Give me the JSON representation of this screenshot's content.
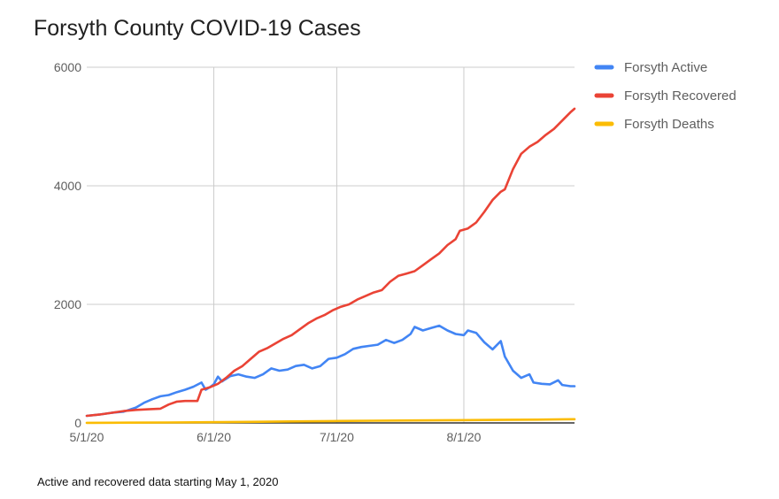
{
  "chart_data": {
    "type": "line",
    "title": "Forsyth County COVID-19 Cases",
    "xlabel": "",
    "ylabel": "",
    "ylim": [
      0,
      6000
    ],
    "yticks": [
      0,
      2000,
      4000,
      6000
    ],
    "xlim_days": [
      0,
      119
    ],
    "xticks": [
      {
        "label": "5/1/20",
        "day": 0
      },
      {
        "label": "6/1/20",
        "day": 31
      },
      {
        "label": "7/1/20",
        "day": 61
      },
      {
        "label": "8/1/20",
        "day": 92
      }
    ],
    "grid": true,
    "legend_position": "right",
    "series": [
      {
        "name": "Forsyth Active",
        "color": "#4285f4",
        "points": [
          [
            0,
            120
          ],
          [
            3,
            140
          ],
          [
            6,
            170
          ],
          [
            9,
            190
          ],
          [
            12,
            260
          ],
          [
            14,
            340
          ],
          [
            16,
            400
          ],
          [
            18,
            450
          ],
          [
            20,
            470
          ],
          [
            22,
            520
          ],
          [
            24,
            560
          ],
          [
            26,
            610
          ],
          [
            28,
            680
          ],
          [
            29,
            560
          ],
          [
            30,
            600
          ],
          [
            31,
            650
          ],
          [
            32,
            780
          ],
          [
            33,
            700
          ],
          [
            35,
            790
          ],
          [
            37,
            820
          ],
          [
            39,
            780
          ],
          [
            41,
            760
          ],
          [
            43,
            820
          ],
          [
            45,
            920
          ],
          [
            47,
            880
          ],
          [
            49,
            900
          ],
          [
            51,
            960
          ],
          [
            53,
            980
          ],
          [
            55,
            920
          ],
          [
            57,
            960
          ],
          [
            59,
            1080
          ],
          [
            61,
            1100
          ],
          [
            63,
            1160
          ],
          [
            65,
            1250
          ],
          [
            67,
            1280
          ],
          [
            69,
            1300
          ],
          [
            71,
            1320
          ],
          [
            73,
            1400
          ],
          [
            75,
            1350
          ],
          [
            77,
            1400
          ],
          [
            79,
            1500
          ],
          [
            80,
            1620
          ],
          [
            82,
            1560
          ],
          [
            84,
            1600
          ],
          [
            86,
            1640
          ],
          [
            88,
            1560
          ],
          [
            90,
            1500
          ],
          [
            92,
            1480
          ],
          [
            93,
            1560
          ],
          [
            95,
            1520
          ],
          [
            97,
            1360
          ],
          [
            99,
            1240
          ],
          [
            101,
            1380
          ],
          [
            102,
            1120
          ],
          [
            104,
            880
          ],
          [
            106,
            760
          ],
          [
            108,
            820
          ],
          [
            109,
            680
          ],
          [
            111,
            660
          ],
          [
            113,
            650
          ],
          [
            115,
            720
          ],
          [
            116,
            640
          ],
          [
            118,
            620
          ],
          [
            119,
            620
          ]
        ]
      },
      {
        "name": "Forsyth Recovered",
        "color": "#ea4335",
        "points": [
          [
            0,
            120
          ],
          [
            3,
            140
          ],
          [
            6,
            170
          ],
          [
            9,
            200
          ],
          [
            12,
            220
          ],
          [
            15,
            230
          ],
          [
            18,
            240
          ],
          [
            20,
            310
          ],
          [
            22,
            360
          ],
          [
            24,
            370
          ],
          [
            27,
            370
          ],
          [
            28,
            560
          ],
          [
            30,
            600
          ],
          [
            32,
            660
          ],
          [
            34,
            760
          ],
          [
            36,
            880
          ],
          [
            38,
            960
          ],
          [
            40,
            1080
          ],
          [
            42,
            1200
          ],
          [
            44,
            1260
          ],
          [
            46,
            1340
          ],
          [
            48,
            1420
          ],
          [
            50,
            1480
          ],
          [
            52,
            1580
          ],
          [
            54,
            1680
          ],
          [
            56,
            1760
          ],
          [
            58,
            1820
          ],
          [
            60,
            1900
          ],
          [
            62,
            1960
          ],
          [
            64,
            2000
          ],
          [
            66,
            2080
          ],
          [
            68,
            2140
          ],
          [
            70,
            2200
          ],
          [
            72,
            2240
          ],
          [
            74,
            2380
          ],
          [
            76,
            2480
          ],
          [
            78,
            2520
          ],
          [
            80,
            2560
          ],
          [
            82,
            2660
          ],
          [
            84,
            2760
          ],
          [
            86,
            2860
          ],
          [
            88,
            3000
          ],
          [
            90,
            3100
          ],
          [
            91,
            3240
          ],
          [
            93,
            3280
          ],
          [
            95,
            3380
          ],
          [
            97,
            3560
          ],
          [
            99,
            3760
          ],
          [
            101,
            3900
          ],
          [
            102,
            3940
          ],
          [
            104,
            4280
          ],
          [
            106,
            4540
          ],
          [
            108,
            4660
          ],
          [
            110,
            4740
          ],
          [
            112,
            4860
          ],
          [
            114,
            4960
          ],
          [
            116,
            5100
          ],
          [
            118,
            5240
          ],
          [
            119,
            5300
          ]
        ]
      },
      {
        "name": "Forsyth Deaths",
        "color": "#fbbc04",
        "points": [
          [
            0,
            2
          ],
          [
            10,
            5
          ],
          [
            20,
            8
          ],
          [
            30,
            12
          ],
          [
            40,
            18
          ],
          [
            50,
            25
          ],
          [
            60,
            32
          ],
          [
            70,
            38
          ],
          [
            80,
            42
          ],
          [
            90,
            46
          ],
          [
            100,
            50
          ],
          [
            110,
            55
          ],
          [
            119,
            62
          ]
        ]
      }
    ]
  },
  "footnote": "Active and recovered data starting May 1, 2020"
}
